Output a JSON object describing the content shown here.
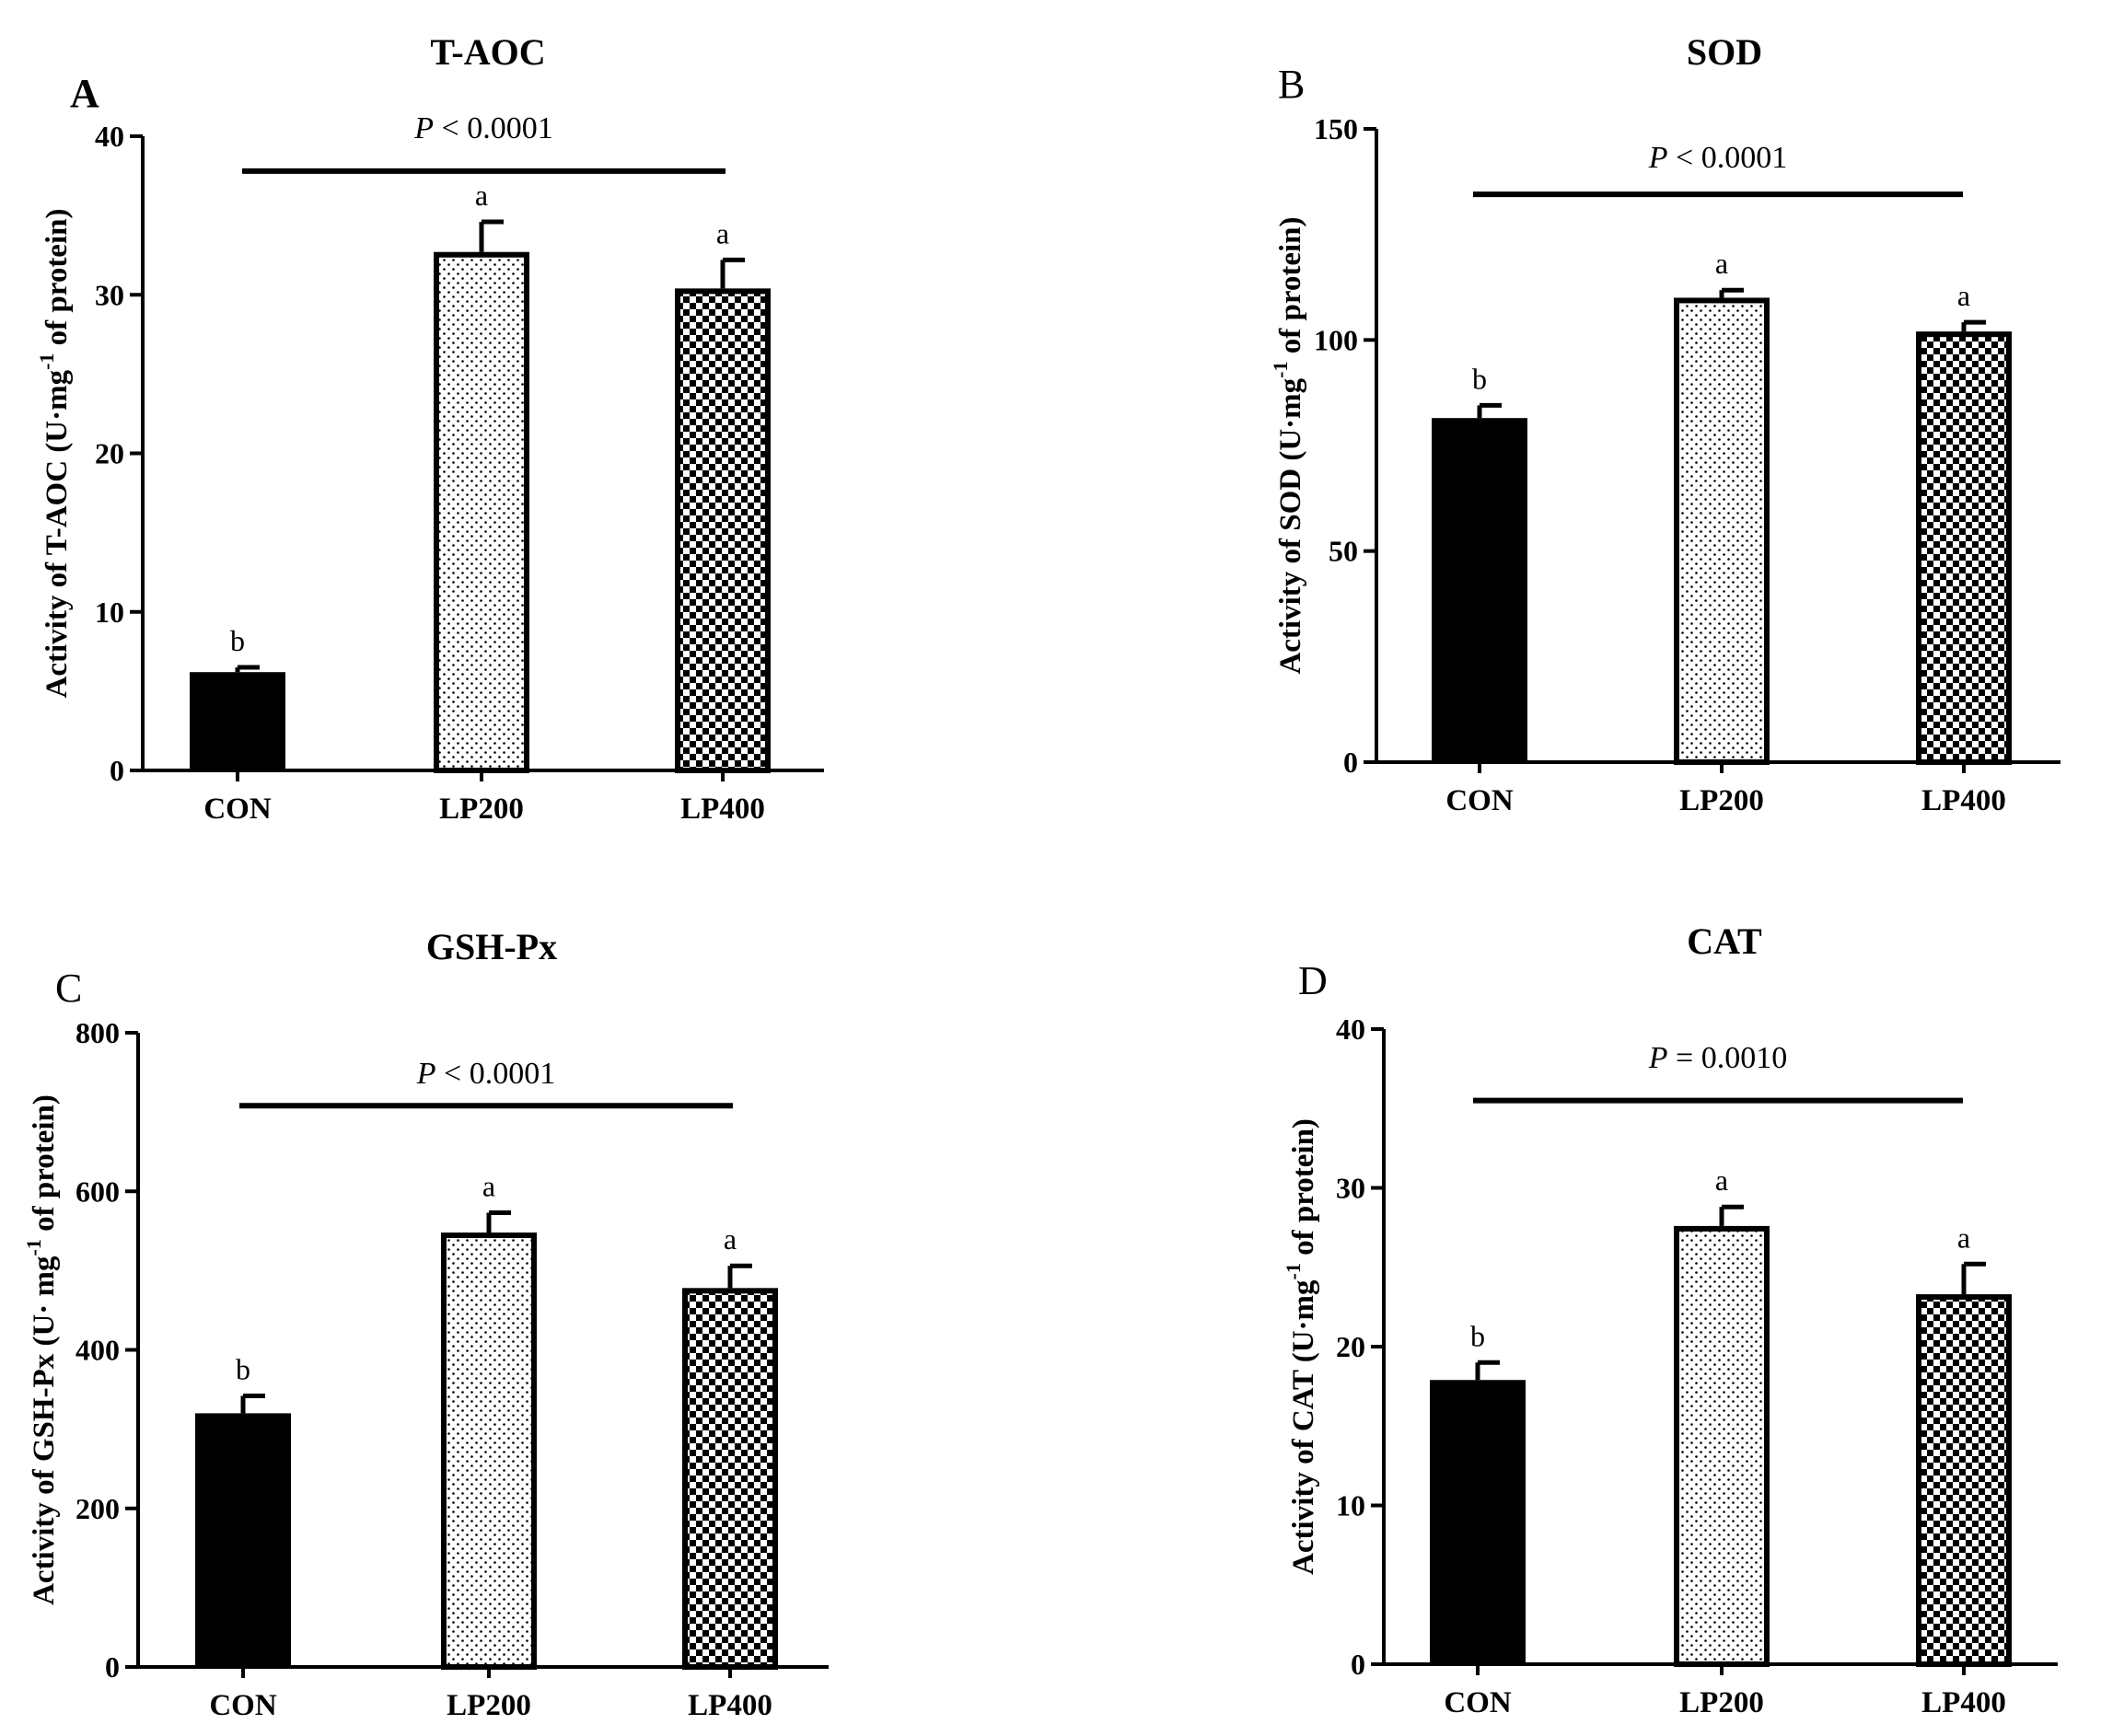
{
  "chart_data": [
    {
      "type": "bar",
      "panel_label": "A",
      "title": "T-AOC",
      "ylabel_prefix": "Activity of T-AOC  (U·mg",
      "ylabel_sup": "-1",
      "ylabel_suffix": " of protein)",
      "categories": [
        "CON",
        "LP200",
        "LP400"
      ],
      "values": [
        6.2,
        32.7,
        30.4
      ],
      "errors": [
        0.3,
        1.9,
        1.8
      ],
      "sig_letters": [
        "b",
        "a",
        "a"
      ],
      "fills": [
        "solid",
        "dots",
        "checker"
      ],
      "ylim": [
        0,
        40
      ],
      "yticks": [
        0,
        10,
        20,
        30,
        40
      ],
      "p_italic": "P",
      "p_text": " < 0.0001",
      "bar_line_y": 37.8
    },
    {
      "type": "bar",
      "panel_label": "B",
      "title": "SOD",
      "ylabel_prefix": "Activity of SOD (U·mg",
      "ylabel_sup": "-1",
      "ylabel_suffix": " of protein)",
      "categories": [
        "CON",
        "LP200",
        "LP400"
      ],
      "values": [
        81.5,
        110,
        102
      ],
      "errors": [
        3.0,
        1.8,
        2.2
      ],
      "sig_letters": [
        "b",
        "a",
        "a"
      ],
      "fills": [
        "solid",
        "dots",
        "checker"
      ],
      "ylim": [
        0,
        150
      ],
      "yticks": [
        0,
        50,
        100,
        150
      ],
      "p_italic": "P",
      "p_text": " < 0.0001",
      "bar_line_y": 134.5
    },
    {
      "type": "bar",
      "panel_label": "C",
      "title": "GSH-Px",
      "ylabel_prefix": "Activity of GSH-Px (U· mg",
      "ylabel_sup": "-1",
      "ylabel_suffix": " of protein)",
      "categories": [
        "CON",
        "LP200",
        "LP400"
      ],
      "values": [
        320,
        548,
        478
      ],
      "errors": [
        22,
        25,
        28
      ],
      "sig_letters": [
        "b",
        "a",
        "a"
      ],
      "fills": [
        "solid",
        "dots",
        "checker"
      ],
      "ylim": [
        0,
        800
      ],
      "yticks": [
        0,
        200,
        400,
        600,
        800
      ],
      "p_italic": "P",
      "p_text": " < 0.0001",
      "bar_line_y": 708
    },
    {
      "type": "bar",
      "panel_label": "D",
      "title": "CAT",
      "ylabel_prefix": "Activity of CAT (U·mg",
      "ylabel_sup": "-1",
      "ylabel_suffix": " of protein)",
      "categories": [
        "CON",
        "LP200",
        "LP400"
      ],
      "values": [
        17.9,
        27.6,
        23.3
      ],
      "errors": [
        1.1,
        1.2,
        1.9
      ],
      "sig_letters": [
        "b",
        "a",
        "a"
      ],
      "fills": [
        "solid",
        "dots",
        "checker"
      ],
      "ylim": [
        0,
        40
      ],
      "yticks": [
        0,
        10,
        20,
        30,
        40
      ],
      "p_italic": "P",
      "p_text": " = 0.0010",
      "bar_line_y": 35.5
    }
  ]
}
